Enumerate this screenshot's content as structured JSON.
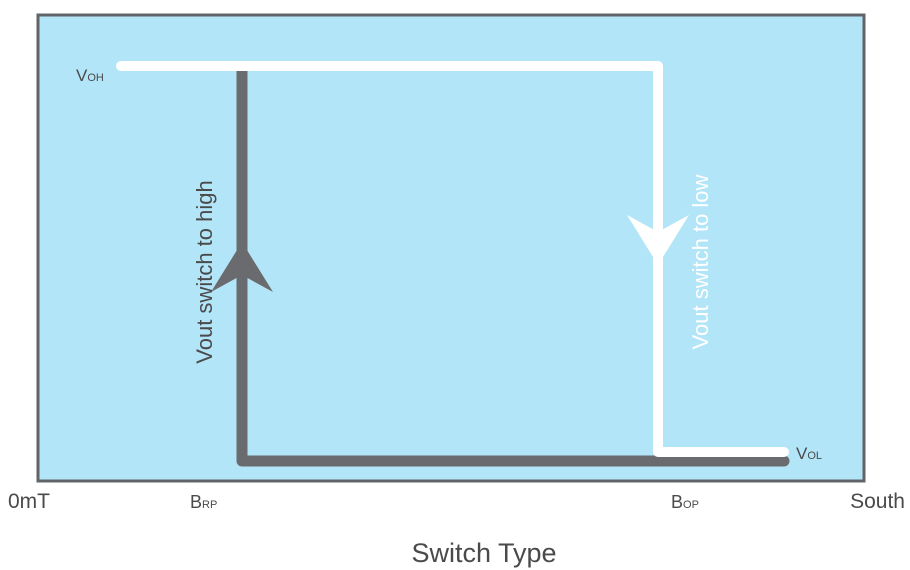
{
  "colors": {
    "panel_fill": "#b3e5f8",
    "panel_border": "#606468",
    "rising_path": "#6a6b6e",
    "falling_path": "#ffffff",
    "text_dark": "#4a4a4a"
  },
  "labels": {
    "voh_main": "V",
    "voh_sub": "OH",
    "vol_main": "V",
    "vol_sub": "OL",
    "switch_high": "Vout switch to high",
    "switch_low": "Vout switch to low"
  },
  "axis": {
    "left": "0mT",
    "brp_main": "B",
    "brp_sub": "RP",
    "bop_main": "B",
    "bop_sub": "OP",
    "right": "South",
    "title": "Switch Type"
  }
}
